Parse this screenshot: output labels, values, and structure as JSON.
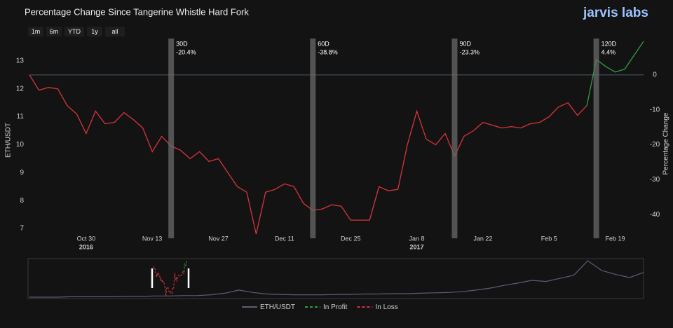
{
  "chart_data": {
    "type": "line",
    "title": "Percentage Change Since Tangerine Whistle Hard Fork",
    "logo": "jarvis labs",
    "range_buttons": [
      "1m",
      "6m",
      "YTD",
      "1y",
      "all"
    ],
    "y_label": "ETH/USDT",
    "y2_label": "Percentage Change",
    "x": [
      "2016-10-18",
      "2016-10-20",
      "2016-10-22",
      "2016-10-24",
      "2016-10-26",
      "2016-10-28",
      "2016-10-30",
      "2016-11-01",
      "2016-11-03",
      "2016-11-05",
      "2016-11-07",
      "2016-11-09",
      "2016-11-11",
      "2016-11-13",
      "2016-11-15",
      "2016-11-17",
      "2016-11-19",
      "2016-11-21",
      "2016-11-23",
      "2016-11-25",
      "2016-11-27",
      "2016-11-29",
      "2016-12-01",
      "2016-12-03",
      "2016-12-05",
      "2016-12-07",
      "2016-12-09",
      "2016-12-11",
      "2016-12-13",
      "2016-12-15",
      "2016-12-17",
      "2016-12-19",
      "2016-12-21",
      "2016-12-23",
      "2016-12-25",
      "2016-12-27",
      "2016-12-29",
      "2016-12-31",
      "2017-01-02",
      "2017-01-04",
      "2017-01-06",
      "2017-01-08",
      "2017-01-10",
      "2017-01-12",
      "2017-01-14",
      "2017-01-16",
      "2017-01-18",
      "2017-01-20",
      "2017-01-22",
      "2017-01-24",
      "2017-01-26",
      "2017-01-28",
      "2017-01-30",
      "2017-02-01",
      "2017-02-03",
      "2017-02-05",
      "2017-02-07",
      "2017-02-09",
      "2017-02-11",
      "2017-02-13",
      "2017-02-15",
      "2017-02-17",
      "2017-02-19",
      "2017-02-21",
      "2017-02-23",
      "2017-02-25"
    ],
    "series": [
      {
        "name": "In Loss",
        "color": "#d8343c",
        "values": [
          12.5,
          11.95,
          12.05,
          12.0,
          11.4,
          11.1,
          10.4,
          11.2,
          10.75,
          10.8,
          11.15,
          10.9,
          10.6,
          9.75,
          10.3,
          9.95,
          9.8,
          9.5,
          9.75,
          9.4,
          9.5,
          9.0,
          8.5,
          8.3,
          6.8,
          8.3,
          8.4,
          8.6,
          8.5,
          7.9,
          7.65,
          7.7,
          7.85,
          7.8,
          7.3,
          7.3,
          7.3,
          8.5,
          8.35,
          8.4,
          10.0,
          11.2,
          10.2,
          10.0,
          10.4,
          9.59,
          10.3,
          10.5,
          10.8,
          10.7,
          10.6,
          10.65,
          10.6,
          10.75,
          10.8,
          11.0,
          11.35,
          11.5,
          11.05,
          11.4,
          null,
          null,
          null,
          null,
          null,
          null
        ]
      },
      {
        "name": "In Profit",
        "color": "#2f9e44",
        "values": [
          null,
          null,
          null,
          null,
          null,
          null,
          null,
          null,
          null,
          null,
          null,
          null,
          null,
          null,
          null,
          null,
          null,
          null,
          null,
          null,
          null,
          null,
          null,
          null,
          null,
          null,
          null,
          null,
          null,
          null,
          null,
          null,
          null,
          null,
          null,
          null,
          null,
          null,
          null,
          null,
          null,
          null,
          null,
          null,
          null,
          null,
          null,
          null,
          null,
          null,
          null,
          null,
          null,
          null,
          null,
          null,
          null,
          null,
          null,
          11.4,
          13.05,
          12.8,
          12.6,
          12.7,
          13.2,
          13.7
        ]
      }
    ],
    "xlim": [
      "2016-10-18",
      "2017-02-25"
    ],
    "xticks": [
      {
        "value": "2016-10-30",
        "label": "Oct 30"
      },
      {
        "value": "2016-11-13",
        "label": "Nov 13"
      },
      {
        "value": "2016-11-27",
        "label": "Nov 27"
      },
      {
        "value": "2016-12-11",
        "label": "Dec 11"
      },
      {
        "value": "2016-12-25",
        "label": "Dec 25"
      },
      {
        "value": "2017-01-08",
        "label": "Jan 8"
      },
      {
        "value": "2017-01-22",
        "label": "Jan 22"
      },
      {
        "value": "2017-02-05",
        "label": "Feb 5"
      },
      {
        "value": "2017-02-19",
        "label": "Feb 19"
      }
    ],
    "x_year_labels": [
      {
        "value": "2016-10-30",
        "label": "2016"
      },
      {
        "value": "2017-01-08",
        "label": "2017"
      }
    ],
    "ylim": [
      6.65,
      13.8
    ],
    "yticks": [
      7,
      8,
      9,
      10,
      11,
      12,
      13
    ],
    "y2lim": [
      -46.8,
      10.4
    ],
    "y2ticks": [
      0,
      -10,
      -20,
      -30,
      -40
    ],
    "markers": [
      {
        "x": "2016-11-17",
        "label": "30D",
        "value": -20.4,
        "value_label": "-20.4%"
      },
      {
        "x": "2016-12-17",
        "label": "60D",
        "value": -38.8,
        "value_label": "-38.8%"
      },
      {
        "x": "2017-01-16",
        "label": "90D",
        "value": -23.3,
        "value_label": "-23.3%"
      },
      {
        "x": "2017-02-15",
        "label": "120D",
        "value": 4.4,
        "value_label": "4.4%"
      }
    ],
    "navigator": {
      "name": "ETH/USDT",
      "color": "#5c5c78",
      "values": [
        2,
        2,
        2,
        3,
        3,
        3,
        3,
        4,
        4,
        5,
        5,
        6,
        6,
        8,
        12,
        20,
        14,
        10,
        9,
        8,
        8,
        8,
        9,
        9,
        10,
        10,
        11,
        11,
        12,
        13,
        14,
        16,
        20,
        25,
        32,
        38,
        45,
        42,
        50,
        58,
        95,
        70,
        60,
        52,
        65
      ]
    }
  }
}
